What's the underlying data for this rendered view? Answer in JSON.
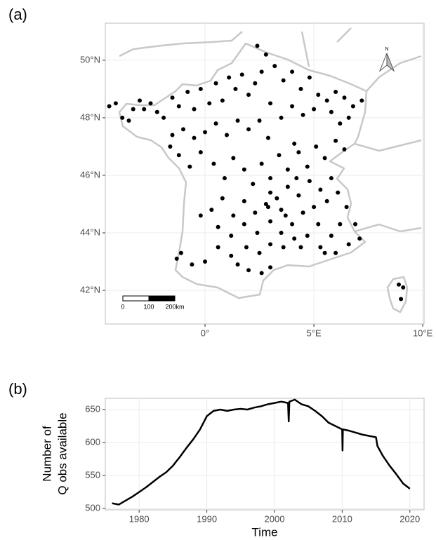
{
  "chart_data": [
    {
      "type": "scatter",
      "panel_label": "(a)",
      "color": "#000000",
      "xlim": [
        -4.58,
        10.06
      ],
      "ylim": [
        40.83,
        51.29
      ],
      "xticks": [
        {
          "value": 0,
          "label": "0°"
        },
        {
          "value": 5,
          "label": "5°E"
        },
        {
          "value": 10,
          "label": "10°E"
        }
      ],
      "yticks": [
        {
          "value": 42,
          "label": "42°N"
        },
        {
          "value": 44,
          "label": "44°N"
        },
        {
          "value": 46,
          "label": "46°N"
        },
        {
          "value": 48,
          "label": "48°N"
        },
        {
          "value": 50,
          "label": "50°N"
        }
      ],
      "grid": true,
      "scale_bar_labels": [
        "0",
        "100",
        "200km"
      ],
      "north_label": "N",
      "x": [
        -4.4,
        -4.1,
        -3.8,
        -3.5,
        -3.3,
        -3.0,
        -2.8,
        -2.5,
        -2.2,
        -1.9,
        -1.5,
        -1.2,
        -0.8,
        -0.5,
        -0.2,
        0.2,
        0.5,
        0.8,
        1.1,
        1.4,
        1.7,
        2.0,
        2.3,
        2.6,
        2.4,
        2.8,
        3.2,
        3.6,
        4.0,
        4.4,
        4.8,
        5.2,
        5.6,
        6.0,
        6.4,
        6.8,
        7.2,
        6.6,
        6.2,
        5.8,
        5.0,
        4.5,
        4.0,
        3.5,
        3.0,
        2.5,
        2.0,
        1.5,
        1.0,
        0.5,
        0.0,
        -0.5,
        -1.0,
        -1.6,
        -1.2,
        -0.7,
        -0.2,
        0.4,
        0.9,
        1.3,
        1.8,
        2.2,
        2.6,
        3.0,
        3.4,
        3.8,
        4.3,
        4.7,
        5.1,
        5.5,
        6.0,
        6.4,
        5.8,
        5.3,
        4.8,
        4.3,
        3.8,
        3.3,
        2.8,
        2.3,
        1.8,
        1.3,
        0.8,
        0.3,
        -0.2,
        0.6,
        1.2,
        1.8,
        2.4,
        3.0,
        3.5,
        4.0,
        4.5,
        5.0,
        5.6,
        6.1,
        6.5,
        6.2,
        5.8,
        5.2,
        4.7,
        4.1,
        3.6,
        3.0,
        2.5,
        1.9,
        1.2,
        0.6,
        0.0,
        -0.6,
        -1.1,
        -1.3,
        1.5,
        2.0,
        2.6,
        3.0,
        5.3,
        6.0,
        6.6,
        7.1,
        6.9,
        8.9,
        9.1,
        9.0,
        -1.5,
        2.9,
        4.1,
        3.5,
        2.9,
        4.2,
        3.0,
        3.7,
        4.4,
        5.5
      ],
      "values": [
        48.4,
        48.5,
        48.0,
        47.9,
        48.3,
        48.6,
        48.3,
        48.5,
        48.2,
        48.0,
        48.7,
        48.4,
        48.9,
        48.3,
        49.0,
        48.5,
        49.2,
        48.6,
        49.4,
        49.0,
        49.5,
        48.8,
        49.2,
        49.6,
        50.5,
        50.2,
        49.8,
        49.3,
        49.6,
        49.0,
        49.4,
        48.8,
        48.6,
        48.9,
        48.7,
        48.4,
        48.6,
        48.0,
        47.8,
        48.2,
        48.3,
        48.1,
        48.4,
        48.0,
        48.5,
        47.9,
        47.6,
        47.9,
        47.4,
        47.8,
        47.5,
        47.3,
        47.6,
        47.0,
        46.7,
        46.3,
        46.8,
        46.4,
        45.9,
        46.6,
        46.2,
        45.7,
        46.4,
        45.9,
        46.7,
        46.2,
        46.8,
        46.3,
        47.0,
        46.6,
        47.2,
        46.9,
        45.9,
        45.5,
        45.8,
        45.3,
        45.6,
        45.2,
        45.0,
        44.7,
        45.1,
        44.6,
        45.2,
        44.8,
        44.6,
        44.2,
        43.9,
        44.3,
        44.0,
        44.4,
        44.8,
        44.3,
        44.7,
        44.9,
        45.1,
        45.4,
        44.9,
        44.3,
        43.9,
        44.3,
        43.9,
        43.8,
        43.5,
        43.6,
        43.3,
        43.5,
        43.2,
        43.5,
        43.0,
        42.9,
        43.3,
        43.1,
        42.9,
        42.7,
        42.6,
        42.8,
        43.5,
        43.3,
        43.6,
        43.8,
        44.3,
        42.2,
        42.1,
        41.7,
        47.4,
        47.3,
        47.1,
        44.0,
        44.9,
        45.9,
        45.4,
        44.6,
        43.5,
        43.3
      ]
    },
    {
      "type": "line",
      "panel_label": "(b)",
      "color": "#000000",
      "xlabel": "Time",
      "ylabel": [
        "Number of",
        "Q obs available"
      ],
      "xlim": [
        1975,
        2022.1
      ],
      "ylim": [
        498,
        667
      ],
      "xticks": [
        1980,
        1990,
        2000,
        2010,
        2020
      ],
      "yticks": [
        500,
        550,
        600,
        650
      ],
      "grid": true,
      "x": [
        1976,
        1977,
        1978,
        1979,
        1980,
        1981,
        1982,
        1983,
        1984,
        1985,
        1986,
        1987,
        1988,
        1989,
        1990,
        1991,
        1992,
        1993,
        1994,
        1995,
        1996,
        1997,
        1998,
        1999,
        2000,
        2001,
        2002,
        2002.1,
        2002.2,
        2003,
        2004,
        2005,
        2006,
        2007,
        2008,
        2009,
        2010,
        2010.05,
        2010.1,
        2011,
        2012,
        2013,
        2014,
        2015,
        2015.2,
        2016,
        2017,
        2018,
        2019,
        2020
      ],
      "values": [
        508,
        506,
        512,
        518,
        525,
        532,
        540,
        548,
        555,
        565,
        578,
        592,
        605,
        620,
        640,
        648,
        650,
        648,
        650,
        651,
        650,
        653,
        655,
        658,
        660,
        662,
        660,
        632,
        662,
        665,
        658,
        655,
        648,
        640,
        630,
        625,
        620,
        588,
        620,
        618,
        615,
        612,
        610,
        608,
        595,
        580,
        565,
        552,
        538,
        530
      ]
    }
  ]
}
